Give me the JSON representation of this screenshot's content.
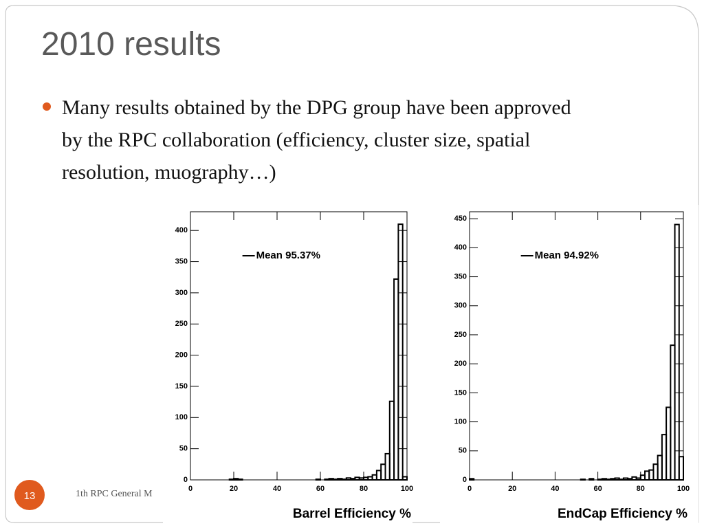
{
  "title": "2010 results",
  "bullet": {
    "lines": [
      "Many results obtained by the DPG group have been approved",
      "by the RPC collaboration (efficiency, cluster size, spatial",
      "resolution, muography…)"
    ]
  },
  "footer": "1th RPC General M",
  "page_number": "13",
  "chart_data": [
    {
      "type": "histogram",
      "annotation": "Mean 95.37%",
      "x_label": "Barrel Efficiency %",
      "color": "#000000",
      "bins": [
        0,
        2,
        4,
        6,
        8,
        10,
        12,
        14,
        16,
        18,
        20,
        22,
        24,
        26,
        28,
        30,
        32,
        34,
        36,
        38,
        40,
        42,
        44,
        46,
        48,
        50,
        52,
        54,
        56,
        58,
        60,
        62,
        64,
        66,
        68,
        70,
        72,
        74,
        76,
        78,
        80,
        82,
        84,
        86,
        88,
        90,
        92,
        94,
        96,
        98,
        100
      ],
      "values": [
        0,
        0,
        0,
        0,
        0,
        0,
        0,
        0,
        0,
        1,
        2,
        1,
        0,
        0,
        0,
        0,
        0,
        0,
        0,
        0,
        0,
        0,
        0,
        0,
        0,
        0,
        0,
        0,
        0,
        1,
        0,
        1,
        2,
        1,
        2,
        1,
        3,
        2,
        4,
        3,
        4,
        5,
        8,
        15,
        25,
        42,
        126,
        322,
        410,
        5
      ],
      "xlim": [
        0,
        100
      ],
      "xticks": [
        0,
        20,
        40,
        60,
        80,
        100
      ],
      "ylim": [
        0,
        430
      ],
      "yticks": [
        0,
        50,
        100,
        150,
        200,
        250,
        300,
        350,
        400
      ]
    },
    {
      "type": "histogram",
      "annotation": "Mean 94.92%",
      "x_label": "EndCap Efficiency %",
      "color": "#000000",
      "bins": [
        0,
        2,
        4,
        6,
        8,
        10,
        12,
        14,
        16,
        18,
        20,
        22,
        24,
        26,
        28,
        30,
        32,
        34,
        36,
        38,
        40,
        42,
        44,
        46,
        48,
        50,
        52,
        54,
        56,
        58,
        60,
        62,
        64,
        66,
        68,
        70,
        72,
        74,
        76,
        78,
        80,
        82,
        84,
        86,
        88,
        90,
        92,
        94,
        96,
        98,
        100
      ],
      "values": [
        2,
        0,
        0,
        0,
        0,
        0,
        0,
        0,
        0,
        0,
        0,
        0,
        0,
        0,
        0,
        0,
        0,
        0,
        0,
        0,
        0,
        0,
        0,
        0,
        0,
        0,
        1,
        0,
        2,
        0,
        1,
        2,
        1,
        2,
        3,
        1,
        3,
        2,
        5,
        3,
        8,
        15,
        17,
        27,
        42,
        78,
        125,
        232,
        440,
        40
      ],
      "xlim": [
        0,
        100
      ],
      "xticks": [
        0,
        20,
        40,
        60,
        80,
        100
      ],
      "ylim": [
        0,
        462
      ],
      "yticks": [
        0,
        50,
        100,
        150,
        200,
        250,
        300,
        350,
        400,
        450
      ]
    }
  ]
}
